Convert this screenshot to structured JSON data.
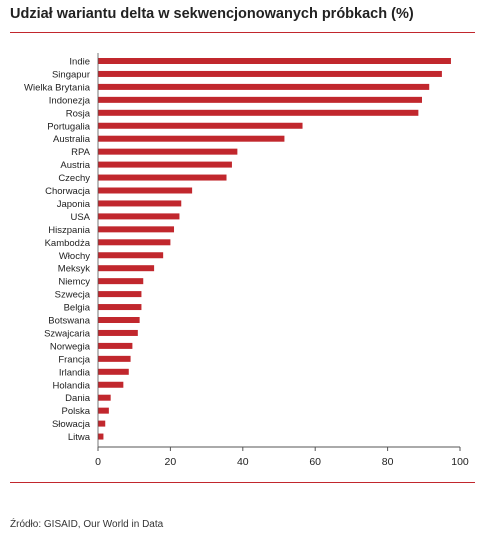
{
  "title": "Udział wariantu delta w sekwencjonowanych próbkach (%)",
  "source": "Źródło: GISAID, Our World in Data",
  "colors": {
    "bar": "#c1272d",
    "rule": "#c1272d",
    "axis": "#555555",
    "text": "#222222"
  },
  "chart_data": {
    "type": "bar",
    "orientation": "horizontal",
    "title": "Udział wariantu delta w sekwencjonowanych próbkach (%)",
    "xlabel": "",
    "ylabel": "",
    "xlim": [
      0,
      100
    ],
    "x_ticks": [
      0,
      20,
      40,
      60,
      80,
      100
    ],
    "grid": false,
    "categories": [
      "Indie",
      "Singapur",
      "Wielka Brytania",
      "Indonezja",
      "Rosja",
      "Portugalia",
      "Australia",
      "RPA",
      "Austria",
      "Czechy",
      "Chorwacja",
      "Japonia",
      "USA",
      "Hiszpania",
      "Kambodża",
      "Włochy",
      "Meksyk",
      "Niemcy",
      "Szwecja",
      "Belgia",
      "Botswana",
      "Szwajcaria",
      "Norwegia",
      "Francja",
      "Irlandia",
      "Holandia",
      "Dania",
      "Polska",
      "Słowacja",
      "Litwa"
    ],
    "values": [
      97.5,
      95,
      91.5,
      89.5,
      88.5,
      56.5,
      51.5,
      38.5,
      37,
      35.5,
      26,
      23,
      22.5,
      21,
      20,
      18,
      15.5,
      12.5,
      12,
      12,
      11.5,
      11,
      9.5,
      9,
      8.5,
      7,
      3.5,
      3,
      2,
      1.5
    ]
  }
}
